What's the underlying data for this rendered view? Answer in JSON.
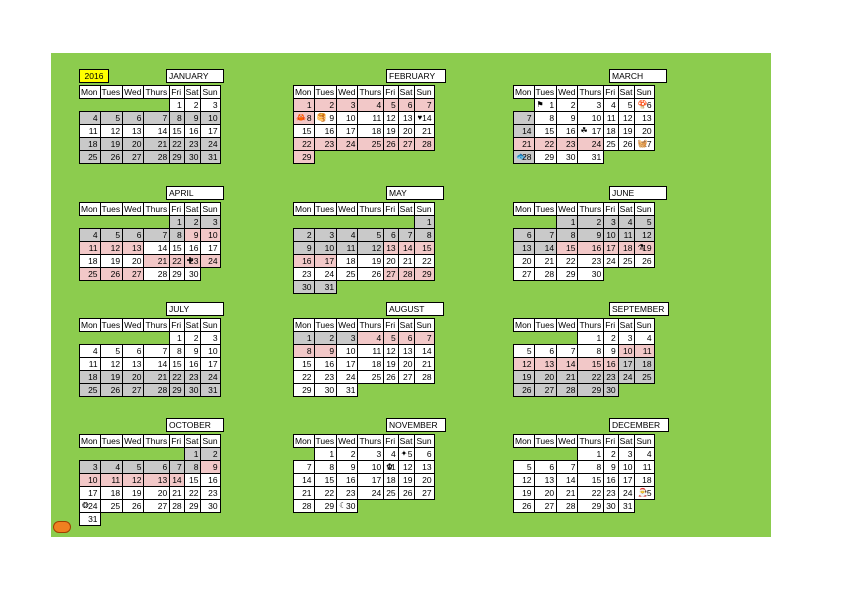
{
  "year": "2016",
  "weekday_labels": [
    "Mon",
    "Tues",
    "Wed",
    "Thurs",
    "Fri",
    "Sat",
    "Sun"
  ],
  "icons": {
    "pumpkin": "pumpkin-icon",
    "crab": "crab-icon",
    "pancakes": "pancakes-icon",
    "heart": "heart-icon",
    "welsh-flag": "welsh-flag-icon",
    "mushroom": "mushroom-icon",
    "shamrock": "shamrock-icon",
    "basket": "basket-icon",
    "fish": "fish-icon",
    "england-flag": "england-flag-icon",
    "bottle": "bottle-icon",
    "firework": "firework-icon",
    "poppy": "poppy-icon",
    "santa": "santa-icon",
    "wreath": "wreath-icon",
    "sleeping": "sleeping-icon"
  },
  "months": [
    {
      "name": "JANUARY",
      "start": 4,
      "days": 31,
      "grey": [
        4,
        5,
        6,
        7,
        8,
        9,
        10,
        18,
        19,
        20,
        21,
        22,
        23,
        24,
        25,
        26,
        27,
        28,
        29,
        30,
        31
      ],
      "pink": [],
      "icons": {}
    },
    {
      "name": "FEBRUARY",
      "start": 0,
      "days": 29,
      "grey": [],
      "pink": [
        1,
        2,
        3,
        4,
        5,
        6,
        7,
        8,
        22,
        23,
        24,
        25,
        26,
        27,
        28,
        29
      ],
      "icons": {
        "8": "crab",
        "9": "pancakes",
        "14": "heart"
      }
    },
    {
      "name": "MARCH",
      "start": 1,
      "days": 31,
      "grey": [
        7,
        14,
        21,
        28
      ],
      "pink": [
        21,
        22,
        23,
        24
      ],
      "icons": {
        "1": "welsh-flag",
        "6": "mushroom",
        "17": "shamrock",
        "27": "basket",
        "28": "fish"
      }
    },
    {
      "name": "APRIL",
      "start": 4,
      "days": 30,
      "grey": [
        1,
        2,
        3,
        4,
        5,
        6,
        7,
        8
      ],
      "pink": [
        9,
        10,
        11,
        12,
        13,
        21,
        22,
        23,
        24,
        25,
        26,
        27
      ],
      "icons": {
        "23": "england-flag"
      }
    },
    {
      "name": "MAY",
      "start": 6,
      "days": 31,
      "grey": [
        1,
        2,
        3,
        4,
        5,
        6,
        7,
        8,
        9,
        10,
        11,
        12,
        16,
        30,
        31
      ],
      "pink": [
        13,
        14,
        15,
        16,
        17,
        27,
        28,
        29
      ],
      "icons": {}
    },
    {
      "name": "JUNE",
      "start": 2,
      "days": 30,
      "grey": [
        1,
        2,
        3,
        4,
        5,
        6,
        7,
        8,
        9,
        10,
        11,
        12,
        13,
        14
      ],
      "pink": [
        15,
        16,
        17,
        18,
        19
      ],
      "icons": {
        "19": "bottle"
      }
    },
    {
      "name": "JULY",
      "start": 4,
      "days": 31,
      "grey": [
        18,
        19,
        20,
        21,
        22,
        23,
        24,
        25,
        26,
        27,
        28,
        29,
        30,
        31
      ],
      "pink": [],
      "icons": {}
    },
    {
      "name": "AUGUST",
      "start": 0,
      "days": 31,
      "grey": [
        1,
        2,
        3,
        4,
        5,
        6,
        7
      ],
      "pink": [
        4,
        5,
        6,
        7,
        8,
        9
      ],
      "icons": {}
    },
    {
      "name": "SEPTEMBER",
      "start": 3,
      "days": 30,
      "grey": [
        17,
        18,
        19,
        20,
        21,
        22,
        23,
        24,
        25,
        26,
        27,
        28,
        29,
        30
      ],
      "pink": [
        10,
        11,
        12,
        13,
        14,
        15,
        16
      ],
      "icons": {}
    },
    {
      "name": "OCTOBER",
      "start": 5,
      "days": 31,
      "grey": [
        1,
        2,
        3,
        4,
        5,
        6,
        7,
        8,
        9
      ],
      "pink": [
        9,
        10,
        11,
        12,
        13,
        14
      ],
      "icons": {
        "24": "wreath"
      }
    },
    {
      "name": "NOVEMBER",
      "start": 1,
      "days": 30,
      "grey": [],
      "pink": [],
      "icons": {
        "5": "firework",
        "11": "poppy",
        "30": "sleeping"
      }
    },
    {
      "name": "DECEMBER",
      "start": 3,
      "days": 31,
      "grey": [],
      "pink": [],
      "icons": {
        "25": "santa"
      }
    }
  ]
}
